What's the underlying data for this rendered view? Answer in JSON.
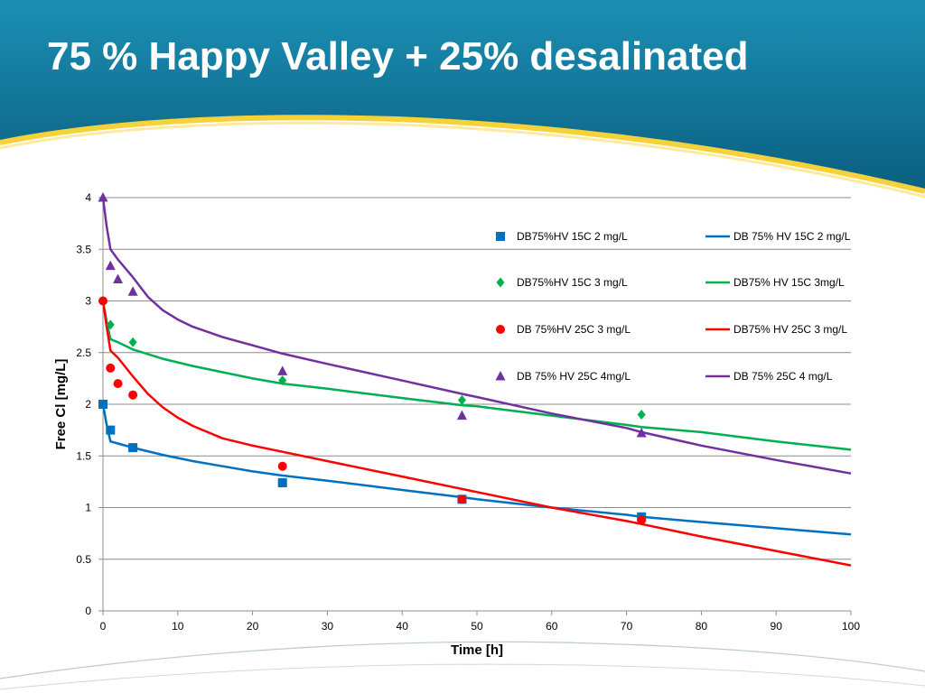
{
  "slide": {
    "title": "75 % Happy Valley + 25% desalinated"
  },
  "colors": {
    "banner_dark": "#0a5f80",
    "banner_light": "#1b8fb4",
    "accent_yellow": "#f5d23a",
    "gridline": "#8c8c8c"
  },
  "chart_data": {
    "type": "scatter",
    "xlabel": "Time [h]",
    "ylabel": "Free Cl [mg/L]",
    "xlim": [
      0,
      100
    ],
    "ylim": [
      0,
      4
    ],
    "xticks": [
      0,
      10,
      20,
      30,
      40,
      50,
      60,
      70,
      80,
      90,
      100
    ],
    "yticks": [
      0,
      0.5,
      1,
      1.5,
      2,
      2.5,
      3,
      3.5,
      4
    ],
    "grid": "horizontal",
    "legend_position": "top-right",
    "series": [
      {
        "name": "DB75%HV 15C 2 mg/L",
        "kind": "markers",
        "marker": "square",
        "color": "#0070c0",
        "x": [
          0,
          1,
          4,
          24,
          48,
          72
        ],
        "y": [
          2.0,
          1.75,
          1.58,
          1.24,
          1.08,
          0.91
        ]
      },
      {
        "name": "DB 75% HV 15C 2 mg/L",
        "kind": "line",
        "color": "#0070c0",
        "x": [
          0,
          0.5,
          1,
          2,
          4,
          8,
          12,
          16,
          20,
          24,
          30,
          40,
          48,
          50,
          60,
          70,
          72,
          80,
          90,
          100
        ],
        "y": [
          2.0,
          1.8,
          1.64,
          1.62,
          1.58,
          1.51,
          1.45,
          1.4,
          1.35,
          1.31,
          1.26,
          1.17,
          1.1,
          1.08,
          1.0,
          0.93,
          0.91,
          0.86,
          0.8,
          0.74
        ]
      },
      {
        "name": "DB75%HV 15C 3 mg/L",
        "kind": "markers",
        "marker": "diamond",
        "color": "#00b050",
        "x": [
          1,
          4,
          24,
          48,
          72
        ],
        "y": [
          2.77,
          2.6,
          2.23,
          2.04,
          1.9
        ]
      },
      {
        "name": "DB75% HV 15C 3mg/L",
        "kind": "line",
        "color": "#00b050",
        "x": [
          0,
          0.5,
          1,
          2,
          4,
          8,
          12,
          16,
          20,
          24,
          30,
          40,
          48,
          50,
          60,
          70,
          72,
          80,
          90,
          100
        ],
        "y": [
          3.0,
          2.8,
          2.63,
          2.6,
          2.53,
          2.44,
          2.37,
          2.31,
          2.25,
          2.2,
          2.15,
          2.06,
          1.99,
          1.98,
          1.89,
          1.8,
          1.78,
          1.73,
          1.64,
          1.56
        ]
      },
      {
        "name": "DB 75%HV 25C 3 mg/L",
        "kind": "markers",
        "marker": "circle",
        "color": "#ff0000",
        "x": [
          0,
          1,
          2,
          4,
          24,
          48,
          72
        ],
        "y": [
          3.0,
          2.35,
          2.2,
          2.09,
          1.4,
          1.08,
          0.88
        ]
      },
      {
        "name": "DB75% HV 25C 3 mg/L",
        "kind": "line",
        "color": "#ff0000",
        "x": [
          0,
          0.5,
          1,
          2,
          4,
          6,
          8,
          10,
          12,
          16,
          20,
          24,
          30,
          40,
          48,
          50,
          60,
          70,
          72,
          80,
          90,
          100
        ],
        "y": [
          3.0,
          2.75,
          2.52,
          2.45,
          2.27,
          2.1,
          1.97,
          1.87,
          1.79,
          1.67,
          1.6,
          1.54,
          1.45,
          1.3,
          1.18,
          1.15,
          1.0,
          0.87,
          0.84,
          0.72,
          0.58,
          0.44
        ]
      },
      {
        "name": "DB 75% HV 25C 4mg/L",
        "kind": "markers",
        "marker": "triangle",
        "color": "#7030a0",
        "x": [
          0,
          1,
          2,
          4,
          24,
          48,
          72
        ],
        "y": [
          4.0,
          3.34,
          3.21,
          3.09,
          2.32,
          1.89,
          1.72
        ]
      },
      {
        "name": "DB 75% 25C 4 mg/L",
        "kind": "line",
        "color": "#7030a0",
        "x": [
          0,
          0.5,
          1,
          2,
          4,
          6,
          8,
          10,
          12,
          16,
          20,
          24,
          30,
          40,
          48,
          50,
          60,
          70,
          72,
          80,
          90,
          100
        ],
        "y": [
          4.0,
          3.72,
          3.5,
          3.4,
          3.23,
          3.04,
          2.91,
          2.82,
          2.75,
          2.65,
          2.57,
          2.49,
          2.39,
          2.23,
          2.1,
          2.07,
          1.91,
          1.77,
          1.73,
          1.6,
          1.46,
          1.33
        ]
      }
    ]
  }
}
